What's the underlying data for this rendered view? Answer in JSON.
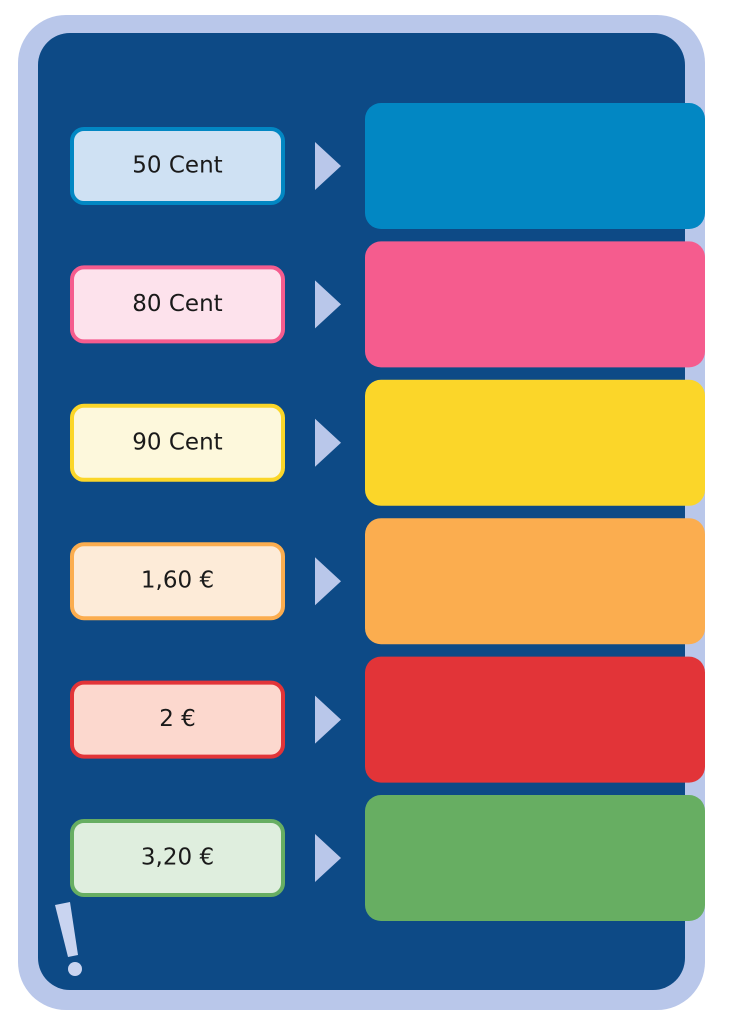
{
  "items": [
    {
      "label": "50 Cent",
      "color": "#0287c3",
      "light": "#cfe1f3"
    },
    {
      "label": "80 Cent",
      "color": "#f55c8e",
      "light": "#fde2ec"
    },
    {
      "label": "90 Cent",
      "color": "#fbd629",
      "light": "#fdf8dc"
    },
    {
      "label": "1,60 €",
      "color": "#fbad4f",
      "light": "#fdebd8"
    },
    {
      "label": "2 €",
      "color": "#e23438",
      "light": "#fcd8ce"
    },
    {
      "label": "3,20 €",
      "color": "#67ae62",
      "light": "#dfeede"
    }
  ]
}
